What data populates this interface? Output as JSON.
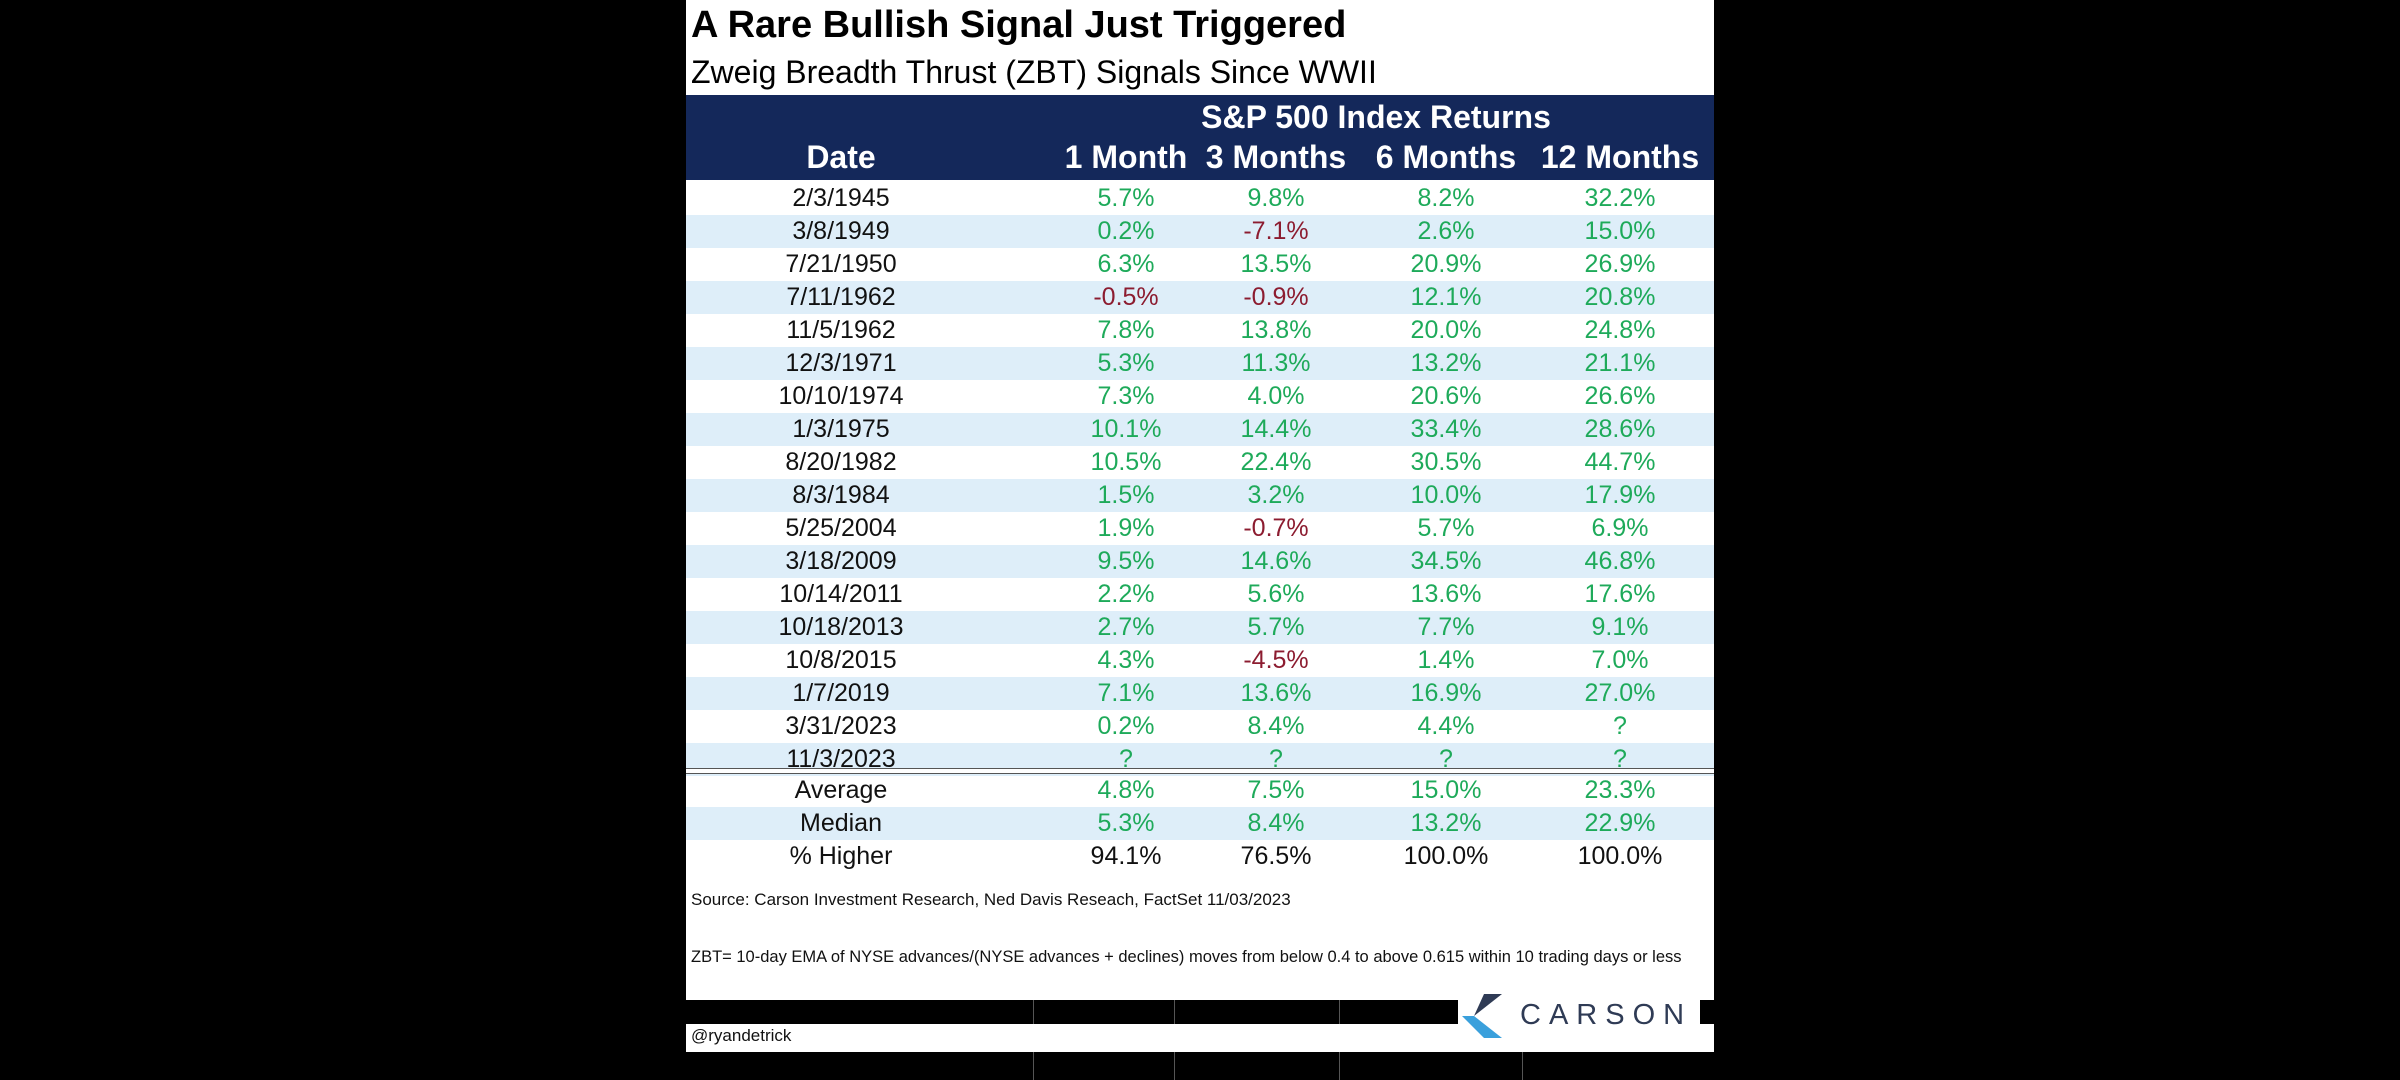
{
  "chart_data": {
    "type": "table",
    "title": "A Rare Bullish Signal Just Triggered",
    "subtitle": "Zweig Breadth Thrust (ZBT) Signals Since WWII",
    "group_header": "S&P 500 Index Returns",
    "columns": [
      "Date",
      "1 Month",
      "3 Months",
      "6 Months",
      "12 Months"
    ],
    "rows": [
      [
        "2/3/1945",
        "5.7%",
        "9.8%",
        "8.2%",
        "32.2%"
      ],
      [
        "3/8/1949",
        "0.2%",
        "-7.1%",
        "2.6%",
        "15.0%"
      ],
      [
        "7/21/1950",
        "6.3%",
        "13.5%",
        "20.9%",
        "26.9%"
      ],
      [
        "7/11/1962",
        "-0.5%",
        "-0.9%",
        "12.1%",
        "20.8%"
      ],
      [
        "11/5/1962",
        "7.8%",
        "13.8%",
        "20.0%",
        "24.8%"
      ],
      [
        "12/3/1971",
        "5.3%",
        "11.3%",
        "13.2%",
        "21.1%"
      ],
      [
        "10/10/1974",
        "7.3%",
        "4.0%",
        "20.6%",
        "26.6%"
      ],
      [
        "1/3/1975",
        "10.1%",
        "14.4%",
        "33.4%",
        "28.6%"
      ],
      [
        "8/20/1982",
        "10.5%",
        "22.4%",
        "30.5%",
        "44.7%"
      ],
      [
        "8/3/1984",
        "1.5%",
        "3.2%",
        "10.0%",
        "17.9%"
      ],
      [
        "5/25/2004",
        "1.9%",
        "-0.7%",
        "5.7%",
        "6.9%"
      ],
      [
        "3/18/2009",
        "9.5%",
        "14.6%",
        "34.5%",
        "46.8%"
      ],
      [
        "10/14/2011",
        "2.2%",
        "5.6%",
        "13.6%",
        "17.6%"
      ],
      [
        "10/18/2013",
        "2.7%",
        "5.7%",
        "7.7%",
        "9.1%"
      ],
      [
        "10/8/2015",
        "4.3%",
        "-4.5%",
        "1.4%",
        "7.0%"
      ],
      [
        "1/7/2019",
        "7.1%",
        "13.6%",
        "16.9%",
        "27.0%"
      ],
      [
        "3/31/2023",
        "0.2%",
        "8.4%",
        "4.4%",
        "?"
      ],
      [
        "11/3/2023",
        "?",
        "?",
        "?",
        "?"
      ]
    ],
    "summary": [
      [
        "Average",
        "4.8%",
        "7.5%",
        "15.0%",
        "23.3%"
      ],
      [
        "Median",
        "5.3%",
        "8.4%",
        "13.2%",
        "22.9%"
      ],
      [
        "% Higher",
        "94.1%",
        "76.5%",
        "100.0%",
        "100.0%"
      ]
    ],
    "colors": {
      "header_bg": "#14285a",
      "positive": "#1eaa5a",
      "negative": "#8c1c30",
      "row_shade": "#deeef9"
    }
  },
  "footer": {
    "source": "Source: Carson Investment Research, Ned Davis Reseach, FactSet 11/03/2023",
    "definition": "ZBT= 10-day EMA of NYSE advances/(NYSE advances + declines) moves from below 0.4 to above 0.615 within 10 trading days or less",
    "handle": "@ryandetrick",
    "logo_text": "CARSON"
  }
}
